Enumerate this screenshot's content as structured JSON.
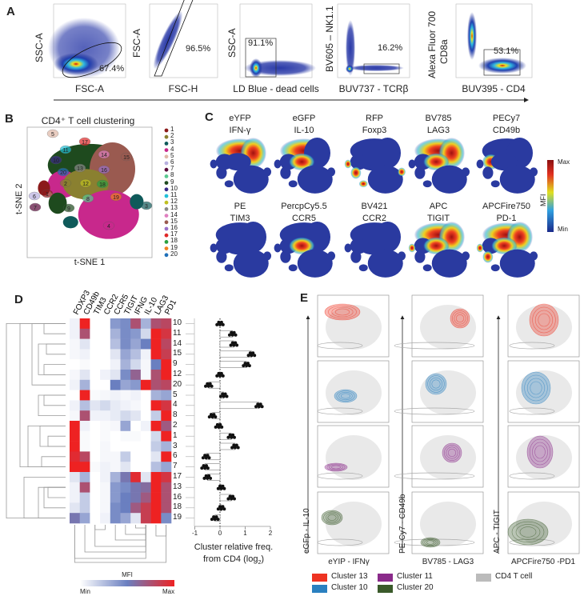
{
  "panels": {
    "A": "A",
    "B": "B",
    "C": "C",
    "D": "D",
    "E": "E"
  },
  "panelA": {
    "plots": [
      {
        "xlabel": "FSC-A",
        "ylabel": "SSC-A",
        "gate": "67.4%"
      },
      {
        "xlabel": "FSC-H",
        "ylabel": "FSC-A",
        "gate": "96.5%"
      },
      {
        "xlabel": "LD Blue - dead cells",
        "ylabel": "SSC-A",
        "gate": "91.1%"
      },
      {
        "xlabel": "BUV737 - TCRβ",
        "ylabel": "BV605 – NK1.1",
        "gate": "16.2%"
      },
      {
        "xlabel": "BUV395 - CD4",
        "ylabel": "Alexa Fluor 700",
        "ylabel2": "CD8a",
        "gate": "53.1%"
      }
    ]
  },
  "panelB": {
    "title": "CD4⁺ T cell clustering",
    "xlabel": "t-SNE 1",
    "ylabel": "t-SNE 2",
    "clusters": [
      {
        "id": "1",
        "color": "#8b1a1a"
      },
      {
        "id": "2",
        "color": "#8a8030"
      },
      {
        "id": "3",
        "color": "#0f5a5a"
      },
      {
        "id": "4",
        "color": "#c8288c"
      },
      {
        "id": "5",
        "color": "#e0b8a8"
      },
      {
        "id": "6",
        "color": "#b8b0e0"
      },
      {
        "id": "7",
        "color": "#5a0a3a"
      },
      {
        "id": "8",
        "color": "#5ac890"
      },
      {
        "id": "9",
        "color": "#1e4a1e"
      },
      {
        "id": "10",
        "color": "#3a2a8a"
      },
      {
        "id": "11",
        "color": "#22c0d8"
      },
      {
        "id": "12",
        "color": "#c0c020"
      },
      {
        "id": "13",
        "color": "#8a8a8a"
      },
      {
        "id": "14",
        "color": "#e080c0"
      },
      {
        "id": "15",
        "color": "#9a5a50"
      },
      {
        "id": "16",
        "color": "#9a70c8"
      },
      {
        "id": "17",
        "color": "#e02828"
      },
      {
        "id": "18",
        "color": "#2aa040"
      },
      {
        "id": "19",
        "color": "#f08020"
      },
      {
        "id": "20",
        "color": "#2070b8"
      }
    ]
  },
  "panelC": {
    "markers": [
      {
        "fluor": "eYFP",
        "marker": "IFN-γ"
      },
      {
        "fluor": "eGFP",
        "marker": "IL-10"
      },
      {
        "fluor": "RFP",
        "marker": "Foxp3"
      },
      {
        "fluor": "BV785",
        "marker": "LAG3"
      },
      {
        "fluor": "PECy7",
        "marker": "CD49b"
      },
      {
        "fluor": "PE",
        "marker": "TIM3"
      },
      {
        "fluor": "PercpCy5.5",
        "marker": "CCR5"
      },
      {
        "fluor": "BV421",
        "marker": "CCR2"
      },
      {
        "fluor": "APC",
        "marker": "TIGIT"
      },
      {
        "fluor": "APCFire750",
        "marker": "PD-1"
      }
    ],
    "colorbar": {
      "label": "MFI",
      "max": "Max",
      "min": "Min"
    }
  },
  "chart_data": [
    {
      "type": "heatmap",
      "columns": [
        "FOXP3",
        "CD49b",
        "TIM3",
        "CCR2",
        "CCR5",
        "TIGIT",
        "IFNG",
        "IL-10",
        "LAG3",
        "PD1"
      ],
      "rows": [
        "10",
        "11",
        "14",
        "15",
        "9",
        "12",
        "20",
        "5",
        "4",
        "8",
        "2",
        "1",
        "3",
        "6",
        "7",
        "17",
        "13",
        "16",
        "18",
        "19"
      ],
      "values": [
        [
          0.05,
          1,
          0,
          0,
          0.4,
          0.45,
          0.75,
          0.3,
          0.75,
          0.8
        ],
        [
          0.05,
          0.75,
          0,
          0,
          0.3,
          0.45,
          0.4,
          0.15,
          1,
          0.9
        ],
        [
          0.03,
          0.1,
          0,
          0,
          0.25,
          0.45,
          0.35,
          0.5,
          1,
          0.8
        ],
        [
          0.03,
          0.05,
          0,
          0,
          0.1,
          0.35,
          0.25,
          0.05,
          1,
          0.85
        ],
        [
          0,
          0.02,
          0,
          0,
          0.05,
          0.3,
          0.15,
          0.03,
          0.5,
          1
        ],
        [
          0.03,
          0.1,
          0,
          0.05,
          0.1,
          0.45,
          0.65,
          0.03,
          0.75,
          1
        ],
        [
          0.05,
          0.3,
          0,
          0,
          0.5,
          0.35,
          0.4,
          1,
          0.75,
          0.8
        ],
        [
          0,
          1,
          0.02,
          0.03,
          0.05,
          0.03,
          0.05,
          0,
          0.3,
          0.35
        ],
        [
          0.05,
          0.25,
          0.1,
          0.15,
          0.08,
          0.05,
          0.03,
          0,
          1,
          0.9
        ],
        [
          0.03,
          0.75,
          0.05,
          0.05,
          0.08,
          0.15,
          0.1,
          0,
          0.2,
          1
        ],
        [
          1,
          0.05,
          0,
          0.02,
          0.03,
          0.35,
          0,
          0.05,
          1,
          0.7
        ],
        [
          1,
          0.02,
          0,
          0.02,
          0,
          0.02,
          0.02,
          0,
          0.15,
          1
        ],
        [
          1,
          0.02,
          0,
          0.03,
          0,
          0,
          0,
          0,
          0.2,
          0.3
        ],
        [
          0.95,
          0.8,
          0,
          0.03,
          0.03,
          0.2,
          0,
          0,
          0.1,
          1
        ],
        [
          1,
          1,
          0.02,
          0.05,
          0.03,
          0.1,
          0,
          0,
          0.25,
          0.35
        ],
        [
          0.1,
          0.3,
          0,
          0.05,
          0.3,
          0.55,
          0.95,
          0.1,
          1,
          0.9
        ],
        [
          0.05,
          0.75,
          0,
          0.03,
          0.4,
          0.45,
          0.55,
          0.6,
          1,
          0.75
        ],
        [
          0.05,
          0.2,
          0,
          0.03,
          0.4,
          0.5,
          0.55,
          0.7,
          1,
          0.75
        ],
        [
          0.1,
          0.2,
          0,
          0.03,
          0.45,
          0.5,
          0.7,
          0.85,
          1,
          0.75
        ],
        [
          0.55,
          0.35,
          0,
          0.05,
          0.45,
          0.35,
          0.1,
          0.85,
          1,
          0.45
        ]
      ],
      "colorbar": {
        "label": "MFI",
        "min": "Min",
        "max": "Max",
        "colors": [
          "#ffffff",
          "#6a7fc0",
          "#ee2222"
        ]
      }
    },
    {
      "type": "bar",
      "orientation": "horizontal",
      "categories": [
        "10",
        "11",
        "14",
        "15",
        "9",
        "12",
        "20",
        "5",
        "4",
        "8",
        "2",
        "1",
        "3",
        "6",
        "7",
        "17",
        "13",
        "16",
        "18",
        "19"
      ],
      "values": [
        0,
        0.5,
        0.55,
        1.25,
        1.05,
        0,
        -0.45,
        0.15,
        1.55,
        -0.3,
        -0.05,
        0.45,
        0.6,
        -0.55,
        -0.6,
        -0.5,
        0.05,
        0.45,
        0.05,
        -0.2
      ],
      "xlabel": "Cluster relative freq.",
      "xlabel2": "from CD4 (log",
      "xlabel_sub": "2",
      "xlabel_end": ")",
      "xlim": [
        -1,
        2
      ],
      "xticks": [
        "-1",
        "0",
        "1",
        "2"
      ]
    }
  ],
  "panelE": {
    "columns": [
      {
        "xlabel": "eYIP - IFNγ",
        "ylabel": "eGFp - IL-10"
      },
      {
        "xlabel": "BV785 - LAG3",
        "ylabel": "PE-Cy7 - CD49b"
      },
      {
        "xlabel": "APCFire750 -PD1",
        "ylabel": "APC - TIGIT"
      }
    ],
    "legend": [
      {
        "label": "Cluster 13",
        "color": "#ee3322"
      },
      {
        "label": "Cluster 10",
        "color": "#2a80c0"
      },
      {
        "label": "Cluster 11",
        "color": "#8a2a8a"
      },
      {
        "label": "Cluster 20",
        "color": "#3a5a2a"
      },
      {
        "label": "CD4 T cell",
        "color": "#bbbbbb"
      }
    ]
  }
}
